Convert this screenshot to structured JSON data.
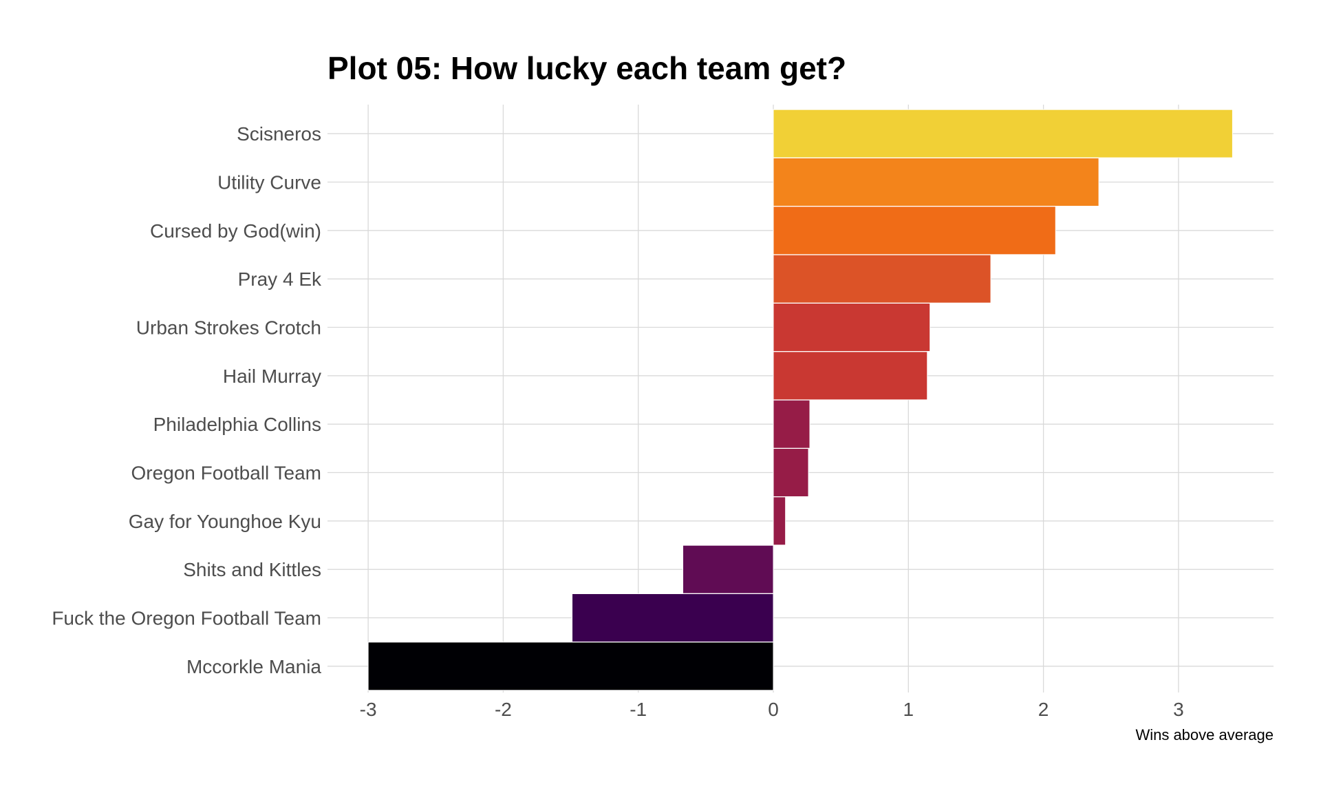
{
  "chart_data": {
    "type": "bar",
    "orientation": "horizontal",
    "title": "Plot 05: How lucky each team get?",
    "xlabel": "Wins above average",
    "ylabel": "",
    "xlim": [
      -3.3,
      3.7
    ],
    "xticks": [
      -3,
      -2,
      -1,
      0,
      1,
      2,
      3
    ],
    "xtick_labels": [
      "-3",
      "-2",
      "-1",
      "0",
      "1",
      "2",
      "3"
    ],
    "grid": true,
    "legend": "none",
    "categories": [
      "Scisneros",
      "Utility Curve",
      "Cursed by God(win)",
      "Pray 4 Ek",
      "Urban Strokes Crotch",
      "Hail Murray",
      "Philadelphia Collins",
      "Oregon Football Team",
      "Gay for Younghoe Kyu",
      "Shits and Kittles",
      "Fuck the Oregon Football Team",
      "Mccorkle Mania"
    ],
    "values": [
      3.4,
      2.41,
      2.09,
      1.61,
      1.16,
      1.14,
      0.27,
      0.26,
      0.09,
      -0.67,
      -1.49,
      -3.0
    ],
    "colors": [
      "#f1d036",
      "#f3841b",
      "#f06c17",
      "#dc5327",
      "#c93832",
      "#c93832",
      "#961c47",
      "#961c47",
      "#961c47",
      "#600c54",
      "#3a004f",
      "#000004"
    ]
  }
}
